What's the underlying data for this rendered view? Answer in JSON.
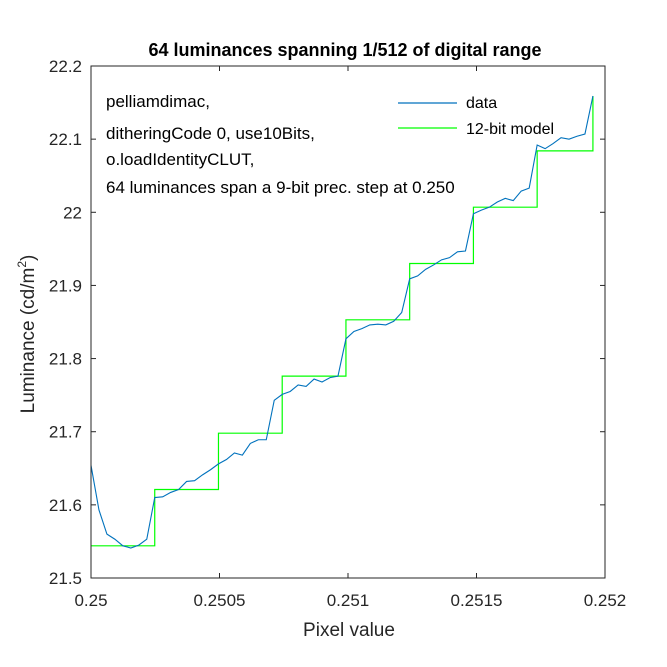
{
  "chart_data": {
    "type": "line",
    "title": "64 luminances spanning 1/512 of digital range",
    "xlabel": "Pixel value",
    "ylabel_main": "Luminance (cd/m",
    "ylabel_sup": "2",
    "ylabel_close": ")",
    "xlim": [
      0.25,
      0.252
    ],
    "ylim": [
      21.5,
      22.2
    ],
    "xticks": [
      0.25,
      0.2505,
      0.251,
      0.2515,
      0.252
    ],
    "xtick_labels": [
      "0.25",
      "0.2505",
      "0.251",
      "0.2515",
      "0.252"
    ],
    "yticks": [
      21.5,
      21.6,
      21.7,
      21.8,
      21.9,
      22.0,
      22.1,
      22.2
    ],
    "ytick_labels": [
      "21.5",
      "21.6",
      "21.7",
      "21.8",
      "21.9",
      "22",
      "22.1",
      "22.2"
    ],
    "grid": false,
    "legend_position": "top-right",
    "annotations": [
      "pelliamdimac,",
      "ditheringCode 0, use10Bits,",
      "o.loadIdentityCLUT,",
      "64 luminances span a 9-bit prec. step at 0.250"
    ],
    "series": [
      {
        "name": "data",
        "color": "#0072BD",
        "x": [
          0.25,
          0.250031,
          0.250062,
          0.250093,
          0.250124,
          0.250155,
          0.250186,
          0.250217,
          0.250248,
          0.250279,
          0.25031,
          0.250341,
          0.250372,
          0.250403,
          0.250434,
          0.250465,
          0.250496,
          0.250527,
          0.250558,
          0.250589,
          0.25062,
          0.250651,
          0.250682,
          0.250713,
          0.250744,
          0.250775,
          0.250806,
          0.250837,
          0.250868,
          0.250899,
          0.25093,
          0.250961,
          0.250992,
          0.251023,
          0.251054,
          0.251085,
          0.251116,
          0.251147,
          0.251178,
          0.251209,
          0.25124,
          0.251271,
          0.251302,
          0.251333,
          0.251364,
          0.251395,
          0.251426,
          0.251457,
          0.251488,
          0.251519,
          0.25155,
          0.251581,
          0.251612,
          0.251643,
          0.251674,
          0.251705,
          0.251736,
          0.251767,
          0.251798,
          0.251829,
          0.25186,
          0.251891,
          0.251922,
          0.251953
        ],
        "y": [
          21.654,
          21.593,
          21.56,
          21.553,
          21.544,
          21.541,
          21.545,
          21.553,
          21.61,
          21.611,
          21.617,
          21.621,
          21.632,
          21.633,
          21.641,
          21.648,
          21.656,
          21.662,
          21.671,
          21.668,
          21.684,
          21.689,
          21.689,
          21.743,
          21.751,
          21.755,
          21.764,
          21.762,
          21.772,
          21.768,
          21.774,
          21.776,
          21.827,
          21.837,
          21.841,
          21.846,
          21.847,
          21.846,
          21.851,
          21.863,
          21.909,
          21.913,
          21.922,
          21.928,
          21.935,
          21.938,
          21.946,
          21.947,
          21.998,
          22.003,
          22.007,
          22.014,
          22.019,
          22.016,
          22.029,
          22.033,
          22.092,
          22.087,
          22.094,
          22.102,
          22.1,
          22.104,
          22.107,
          22.159
        ]
      },
      {
        "name": "12-bit model",
        "color": "#00FF00",
        "step_x": [
          0.25,
          0.250248,
          0.250496,
          0.250744,
          0.250992,
          0.25124,
          0.251488,
          0.251736,
          0.251953
        ],
        "step_y": [
          21.544,
          21.621,
          21.698,
          21.776,
          21.853,
          21.93,
          22.007,
          22.084
        ]
      }
    ]
  }
}
